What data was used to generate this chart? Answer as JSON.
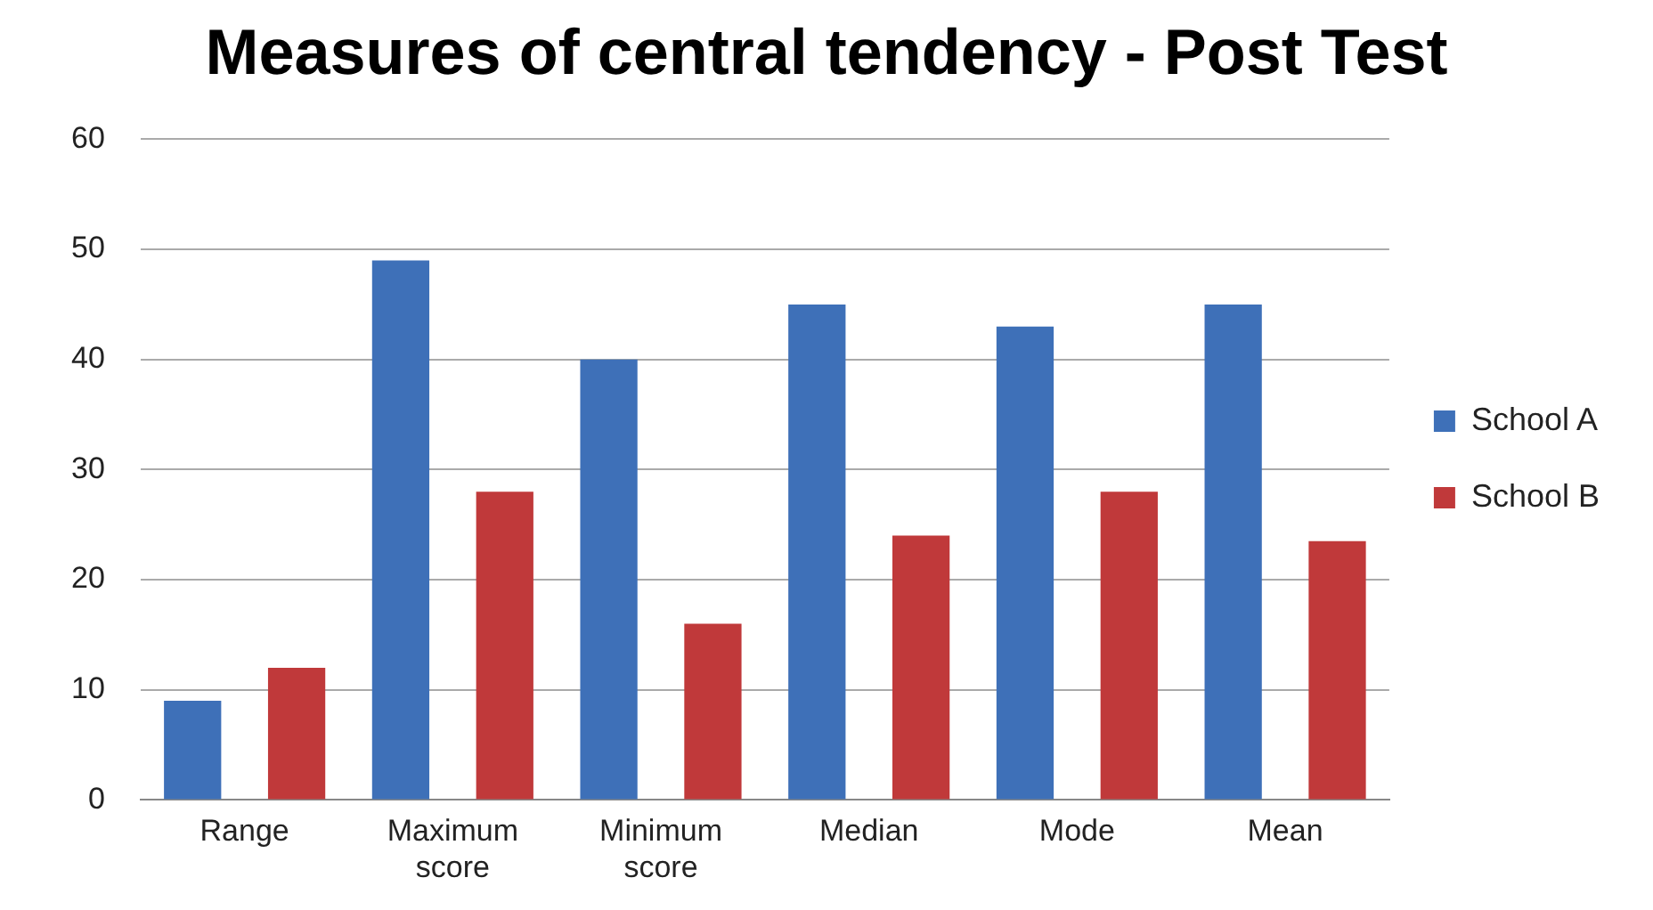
{
  "chart_data": {
    "type": "bar",
    "title": "Measures of central tendency - Post Test",
    "categories": [
      "Range",
      "Maximum score",
      "Minimum score",
      "Median",
      "Mode",
      "Mean"
    ],
    "series": [
      {
        "name": "School A",
        "color": "#3e70b8",
        "values": [
          9,
          49,
          40,
          45,
          43,
          45
        ]
      },
      {
        "name": "School B",
        "color": "#c0393a",
        "values": [
          12,
          28,
          16,
          24,
          28,
          23.5
        ]
      }
    ],
    "ylim": [
      0,
      60
    ],
    "yticks": [
      0,
      10,
      20,
      30,
      40,
      50,
      60
    ],
    "grid": "y",
    "legend": "right"
  }
}
